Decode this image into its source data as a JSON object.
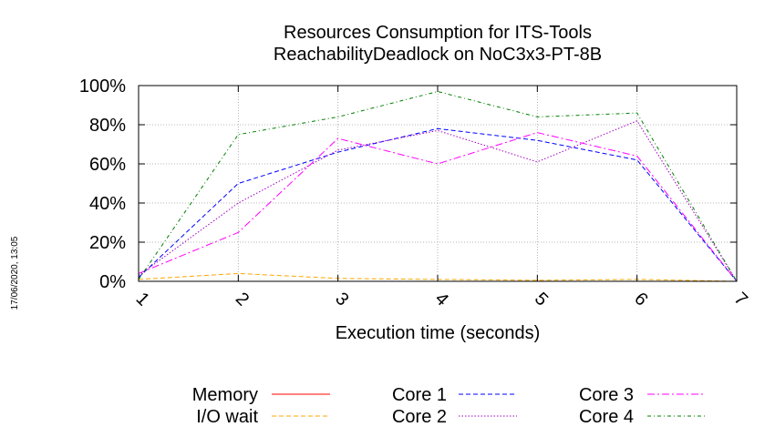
{
  "timestamp": "17/06/2020, 13:05",
  "chart_data": {
    "type": "line",
    "title": "Resources Consumption for ITS-Tools",
    "subtitle": "ReachabilityDeadlock on NoC3x3-PT-8B",
    "xlabel": "Execution time (seconds)",
    "ylabel": "",
    "x": [
      1,
      2,
      3,
      4,
      5,
      6,
      7
    ],
    "xlim": [
      1,
      7
    ],
    "ylim": [
      0,
      100
    ],
    "y_tick_labels": [
      "0%",
      "20%",
      "40%",
      "60%",
      "80%",
      "100%"
    ],
    "x_tick_labels": [
      "1",
      "2",
      "3",
      "4",
      "5",
      "6",
      "7"
    ],
    "grid": true,
    "legend_position": "bottom",
    "series": [
      {
        "name": "Memory",
        "color": "#ff0000",
        "dash": "solid",
        "values": [
          0,
          0,
          0,
          0,
          0,
          0,
          0
        ]
      },
      {
        "name": "I/O wait",
        "color": "#ffa500",
        "dash": "dashed",
        "values": [
          1,
          4,
          1.5,
          1,
          0.5,
          1,
          0
        ]
      },
      {
        "name": "Core 1",
        "color": "#0000ff",
        "dash": "dashed",
        "values": [
          2,
          50,
          66,
          78,
          72,
          62,
          0
        ]
      },
      {
        "name": "Core 2",
        "color": "#a000c0",
        "dash": "dotted",
        "values": [
          3,
          40,
          67,
          77,
          61,
          82,
          0
        ]
      },
      {
        "name": "Core 3",
        "color": "#ff00ff",
        "dash": "dashdot",
        "values": [
          4,
          25,
          73,
          60,
          76,
          64,
          0
        ]
      },
      {
        "name": "Core 4",
        "color": "#008000",
        "dash": "dashdot2",
        "values": [
          1,
          75,
          84,
          97,
          84,
          86,
          0
        ]
      }
    ]
  }
}
